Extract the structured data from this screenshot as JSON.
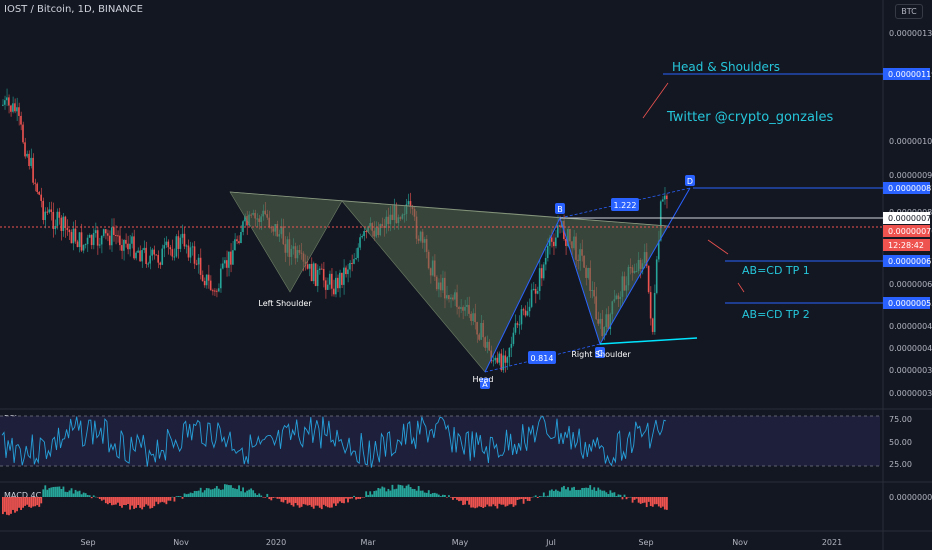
{
  "symbol": "IOST / Bitcoin, 1D, BINANCE",
  "currency_badge": "BTC",
  "panes": {
    "rsi_label": "RSI",
    "macd_label": "MACD 4C"
  },
  "colors": {
    "background": "#131722",
    "up": "#26a69a",
    "down": "#ef5350",
    "pattern_fill": "#556b50",
    "pattern_line": "#2962ff",
    "text": "#d1d4dc",
    "accent_text": "#26c6da"
  },
  "chart_data": {
    "type": "candlestick",
    "x_ticks": [
      "Sep",
      "Nov",
      "2020",
      "Mar",
      "May",
      "Jul",
      "Sep",
      "Nov",
      "2021"
    ],
    "y_ticks": [
      "0.00000130",
      "0.00000100",
      "0.00000090",
      "0.00000080",
      "0.00000060",
      "0.00000048",
      "0.00000042",
      "0.00000036",
      "0.00000030"
    ],
    "price_labels": [
      {
        "label": "0.00000119",
        "style": "line"
      },
      {
        "label": "0.00000087",
        "style": "line"
      },
      {
        "label": "0.00000078",
        "style": "current"
      },
      {
        "label": "0.00000076",
        "style": "last"
      },
      {
        "label": "12:28:42",
        "style": "countdown"
      },
      {
        "label": "0.00000067",
        "style": "line"
      },
      {
        "label": "0.00000055",
        "style": "line"
      }
    ],
    "pattern": {
      "name": "Head & Shoulders",
      "points": [
        "Left Shoulder",
        "Head",
        "Right Shoulder"
      ],
      "xabcd_labels": [
        "A",
        "B",
        "C",
        "D"
      ],
      "ratios": [
        "0.814",
        "1.222"
      ]
    },
    "targets": [
      "AB=CD TP 1",
      "AB=CD TP 2"
    ],
    "annotation": "Twitter  @crypto_gonzales",
    "rsi": {
      "ticks": [
        "75.00",
        "50.00",
        "25.00"
      ],
      "upper": 75,
      "lower": 25
    },
    "macd": {
      "ticks": [
        "0.00000000"
      ]
    }
  }
}
